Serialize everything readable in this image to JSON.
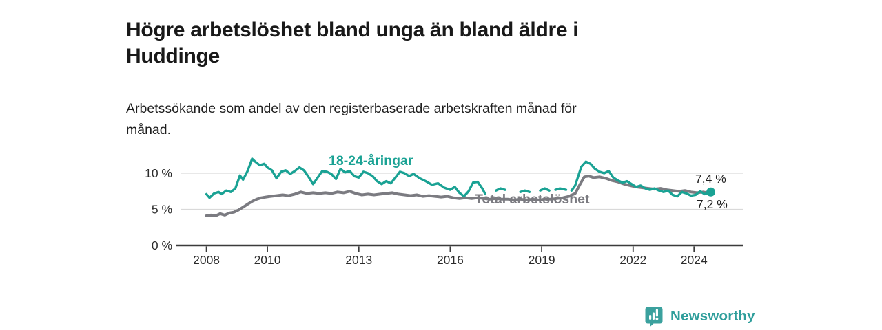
{
  "header": {
    "title": "Högre arbetslöshet bland unga än bland äldre i\nHuddinge",
    "subtitle": "Arbetssökande som andel av den registerbaserade arbetskraften månad för\nmånad."
  },
  "brand": {
    "name": "Newsworthy",
    "icon": "newsworthy-bar-chart-bubble",
    "icon_color": "#3ba19e",
    "text_color": "#2f9e9b"
  },
  "chart_data": {
    "type": "line",
    "title": "",
    "xlabel": "",
    "ylabel": "",
    "x_unit": "year (monthly observations)",
    "xlim": [
      2007.15,
      2025.6
    ],
    "ylim": [
      0,
      13
    ],
    "grid": "horizontal",
    "grid_color": "#d9d9d9",
    "axis_color": "#3b3b3b",
    "tick_label_color": "#2b2b2b",
    "legend_position": "inline-labels",
    "y_ticks": [
      {
        "value": 0,
        "label": "0 %"
      },
      {
        "value": 5,
        "label": "5 %"
      },
      {
        "value": 10,
        "label": "10 %"
      }
    ],
    "x_ticks": [
      {
        "value": 2008,
        "label": "2008"
      },
      {
        "value": 2010,
        "label": "2010"
      },
      {
        "value": 2013,
        "label": "2013"
      },
      {
        "value": 2016,
        "label": "2016"
      },
      {
        "value": 2019,
        "label": "2019"
      },
      {
        "value": 2022,
        "label": "2022"
      },
      {
        "value": 2024,
        "label": "2024"
      }
    ],
    "series": [
      {
        "name": "Total arbetslöshet",
        "color": "#7b7b81",
        "stroke_width": 4,
        "end_label": "7,2 %",
        "end_dot": false,
        "points": [
          [
            2008.0,
            4.1
          ],
          [
            2008.15,
            4.2
          ],
          [
            2008.3,
            4.1
          ],
          [
            2008.45,
            4.4
          ],
          [
            2008.6,
            4.2
          ],
          [
            2008.75,
            4.5
          ],
          [
            2008.9,
            4.6
          ],
          [
            2009.05,
            4.9
          ],
          [
            2009.2,
            5.3
          ],
          [
            2009.35,
            5.7
          ],
          [
            2009.5,
            6.1
          ],
          [
            2009.65,
            6.4
          ],
          [
            2009.8,
            6.6
          ],
          [
            2009.95,
            6.7
          ],
          [
            2010.1,
            6.8
          ],
          [
            2010.3,
            6.9
          ],
          [
            2010.5,
            7.0
          ],
          [
            2010.7,
            6.9
          ],
          [
            2010.9,
            7.1
          ],
          [
            2011.1,
            7.4
          ],
          [
            2011.3,
            7.2
          ],
          [
            2011.5,
            7.3
          ],
          [
            2011.7,
            7.2
          ],
          [
            2011.9,
            7.3
          ],
          [
            2012.1,
            7.2
          ],
          [
            2012.3,
            7.4
          ],
          [
            2012.5,
            7.3
          ],
          [
            2012.7,
            7.5
          ],
          [
            2012.9,
            7.2
          ],
          [
            2013.1,
            7.0
          ],
          [
            2013.3,
            7.1
          ],
          [
            2013.5,
            7.0
          ],
          [
            2013.7,
            7.1
          ],
          [
            2013.9,
            7.2
          ],
          [
            2014.1,
            7.3
          ],
          [
            2014.3,
            7.1
          ],
          [
            2014.5,
            7.0
          ],
          [
            2014.7,
            6.9
          ],
          [
            2014.9,
            7.0
          ],
          [
            2015.1,
            6.8
          ],
          [
            2015.3,
            6.9
          ],
          [
            2015.5,
            6.8
          ],
          [
            2015.7,
            6.7
          ],
          [
            2015.9,
            6.8
          ],
          [
            2016.1,
            6.6
          ],
          [
            2016.3,
            6.5
          ],
          [
            2016.5,
            6.6
          ],
          [
            2016.7,
            6.5
          ],
          [
            2016.9,
            6.6
          ],
          [
            2017.1,
            6.5
          ],
          [
            2017.3,
            6.4
          ],
          [
            2017.5,
            6.5
          ],
          [
            2017.7,
            6.4
          ],
          [
            2017.9,
            6.4
          ],
          [
            2018.1,
            6.3
          ],
          [
            2018.3,
            6.4
          ],
          [
            2018.5,
            6.3
          ],
          [
            2018.7,
            6.4
          ],
          [
            2018.9,
            6.3
          ],
          [
            2019.1,
            6.4
          ],
          [
            2019.3,
            6.4
          ],
          [
            2019.5,
            6.5
          ],
          [
            2019.7,
            6.6
          ],
          [
            2019.9,
            6.8
          ],
          [
            2020.1,
            7.2
          ],
          [
            2020.25,
            8.4
          ],
          [
            2020.4,
            9.5
          ],
          [
            2020.55,
            9.6
          ],
          [
            2020.7,
            9.4
          ],
          [
            2020.9,
            9.5
          ],
          [
            2021.1,
            9.3
          ],
          [
            2021.3,
            9.0
          ],
          [
            2021.5,
            8.8
          ],
          [
            2021.7,
            8.5
          ],
          [
            2021.9,
            8.3
          ],
          [
            2022.1,
            8.1
          ],
          [
            2022.3,
            8.0
          ],
          [
            2022.5,
            7.9
          ],
          [
            2022.7,
            7.8
          ],
          [
            2022.9,
            7.9
          ],
          [
            2023.1,
            7.7
          ],
          [
            2023.3,
            7.6
          ],
          [
            2023.5,
            7.5
          ],
          [
            2023.7,
            7.6
          ],
          [
            2023.9,
            7.4
          ],
          [
            2024.1,
            7.3
          ],
          [
            2024.3,
            7.4
          ],
          [
            2024.55,
            7.2
          ]
        ]
      },
      {
        "name": "18-24-åringar",
        "color": "#1aa294",
        "stroke_width": 3.4,
        "end_label": "7,4 %",
        "end_dot": true,
        "end_dot_radius": 6.5,
        "points": [
          [
            2008.0,
            7.1
          ],
          [
            2008.1,
            6.6
          ],
          [
            2008.25,
            7.2
          ],
          [
            2008.4,
            7.4
          ],
          [
            2008.5,
            7.1
          ],
          [
            2008.65,
            7.6
          ],
          [
            2008.8,
            7.4
          ],
          [
            2008.95,
            7.9
          ],
          [
            2009.1,
            9.7
          ],
          [
            2009.2,
            9.1
          ],
          [
            2009.35,
            10.3
          ],
          [
            2009.5,
            12.0
          ],
          [
            2009.6,
            11.6
          ],
          [
            2009.75,
            11.1
          ],
          [
            2009.9,
            11.3
          ],
          [
            2010.0,
            10.8
          ],
          [
            2010.15,
            10.4
          ],
          [
            2010.3,
            9.3
          ],
          [
            2010.45,
            10.2
          ],
          [
            2010.6,
            10.4
          ],
          [
            2010.75,
            9.9
          ],
          [
            2010.9,
            10.3
          ],
          [
            2011.05,
            10.8
          ],
          [
            2011.2,
            10.4
          ],
          [
            2011.35,
            9.5
          ],
          [
            2011.5,
            8.5
          ],
          [
            2011.65,
            9.4
          ],
          [
            2011.8,
            10.3
          ],
          [
            2011.95,
            10.2
          ],
          [
            2012.1,
            9.9
          ],
          [
            2012.25,
            9.2
          ],
          [
            2012.4,
            10.6
          ],
          [
            2012.55,
            10.1
          ],
          [
            2012.7,
            10.3
          ],
          [
            2012.85,
            9.6
          ],
          [
            2013.0,
            9.4
          ],
          [
            2013.15,
            10.2
          ],
          [
            2013.3,
            10.0
          ],
          [
            2013.45,
            9.6
          ],
          [
            2013.6,
            8.9
          ],
          [
            2013.75,
            8.5
          ],
          [
            2013.9,
            8.9
          ],
          [
            2014.05,
            8.6
          ],
          [
            2014.2,
            9.4
          ],
          [
            2014.35,
            10.2
          ],
          [
            2014.5,
            10.0
          ],
          [
            2014.65,
            9.6
          ],
          [
            2014.8,
            9.9
          ],
          [
            2015.0,
            9.3
          ],
          [
            2015.2,
            8.9
          ],
          [
            2015.4,
            8.4
          ],
          [
            2015.6,
            8.6
          ],
          [
            2015.8,
            8.0
          ],
          [
            2016.0,
            7.7
          ],
          [
            2016.15,
            8.1
          ],
          [
            2016.3,
            7.3
          ],
          [
            2016.45,
            6.8
          ],
          [
            2016.6,
            7.5
          ],
          [
            2016.75,
            8.7
          ],
          [
            2016.9,
            8.8
          ],
          [
            2017.05,
            7.9
          ],
          [
            2017.15,
            7.1
          ],
          null,
          [
            2017.5,
            7.6
          ],
          [
            2017.65,
            7.9
          ],
          [
            2017.8,
            7.7
          ],
          null,
          [
            2018.3,
            7.4
          ],
          [
            2018.45,
            7.6
          ],
          [
            2018.6,
            7.4
          ],
          null,
          [
            2018.95,
            7.6
          ],
          [
            2019.1,
            7.9
          ],
          [
            2019.25,
            7.6
          ],
          null,
          [
            2019.45,
            7.7
          ],
          [
            2019.6,
            7.9
          ],
          [
            2019.8,
            7.7
          ],
          null,
          [
            2019.98,
            7.6
          ],
          [
            2020.1,
            8.3
          ],
          [
            2020.3,
            10.9
          ],
          [
            2020.45,
            11.6
          ],
          [
            2020.6,
            11.3
          ],
          [
            2020.75,
            10.6
          ],
          [
            2020.9,
            10.2
          ],
          [
            2021.05,
            10.0
          ],
          [
            2021.2,
            10.3
          ],
          [
            2021.35,
            9.4
          ],
          [
            2021.5,
            9.0
          ],
          [
            2021.65,
            8.7
          ],
          [
            2021.8,
            8.9
          ],
          [
            2021.95,
            8.5
          ],
          [
            2022.1,
            8.1
          ],
          [
            2022.25,
            8.3
          ],
          [
            2022.4,
            7.9
          ],
          [
            2022.55,
            7.7
          ],
          [
            2022.7,
            7.9
          ],
          [
            2022.85,
            7.6
          ],
          [
            2023.0,
            7.4
          ],
          [
            2023.15,
            7.6
          ],
          [
            2023.3,
            7.0
          ],
          [
            2023.45,
            6.8
          ],
          [
            2023.6,
            7.4
          ],
          [
            2023.75,
            7.2
          ],
          [
            2023.9,
            6.9
          ],
          [
            2024.05,
            7.0
          ],
          [
            2024.2,
            7.5
          ],
          [
            2024.35,
            7.1
          ],
          [
            2024.55,
            7.4
          ]
        ]
      }
    ]
  }
}
